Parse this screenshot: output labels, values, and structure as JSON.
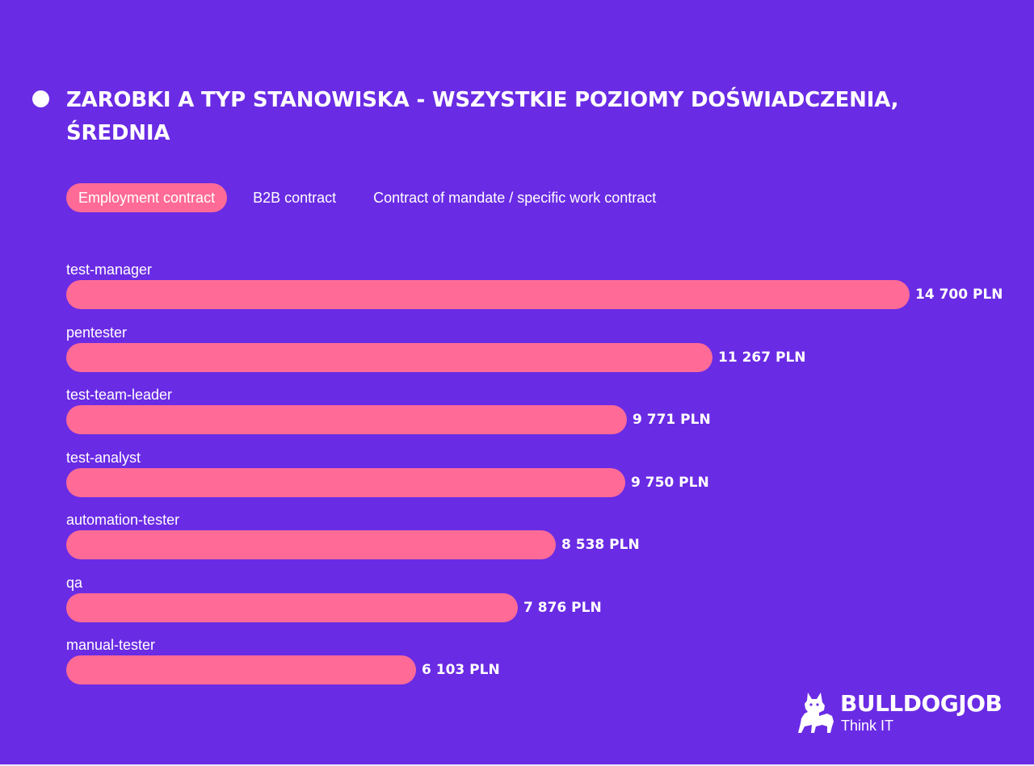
{
  "title": "ZAROBKI A TYP STANOWISKA - WSZYSTKIE POZIOMY DOŚWIADCZENIA, ŚREDNIA",
  "tabs": [
    {
      "label": "Employment contract",
      "active": true
    },
    {
      "label": "B2B contract",
      "active": false
    },
    {
      "label": "Contract of mandate / specific work contract",
      "active": false
    }
  ],
  "chart_data": {
    "type": "bar",
    "orientation": "horizontal",
    "categories": [
      "test-manager",
      "pentester",
      "test-team-leader",
      "test-analyst",
      "automation-tester",
      "qa",
      "manual-tester"
    ],
    "values": [
      14700,
      11267,
      9771,
      9750,
      8538,
      7876,
      6103
    ],
    "value_labels": [
      "14 700 PLN",
      "11 267 PLN",
      "9 771 PLN",
      "9 750 PLN",
      "8 538 PLN",
      "7 876 PLN",
      "6 103 PLN"
    ],
    "unit": "PLN",
    "xlim": [
      0,
      14700
    ],
    "grid": false,
    "bar_color": "#ff6b96"
  },
  "logo": {
    "name": "BULLDOGJOB",
    "tagline": "Think IT"
  },
  "colors": {
    "background": "#6a2be4",
    "accent": "#ff6b96",
    "text": "#ffffff"
  }
}
